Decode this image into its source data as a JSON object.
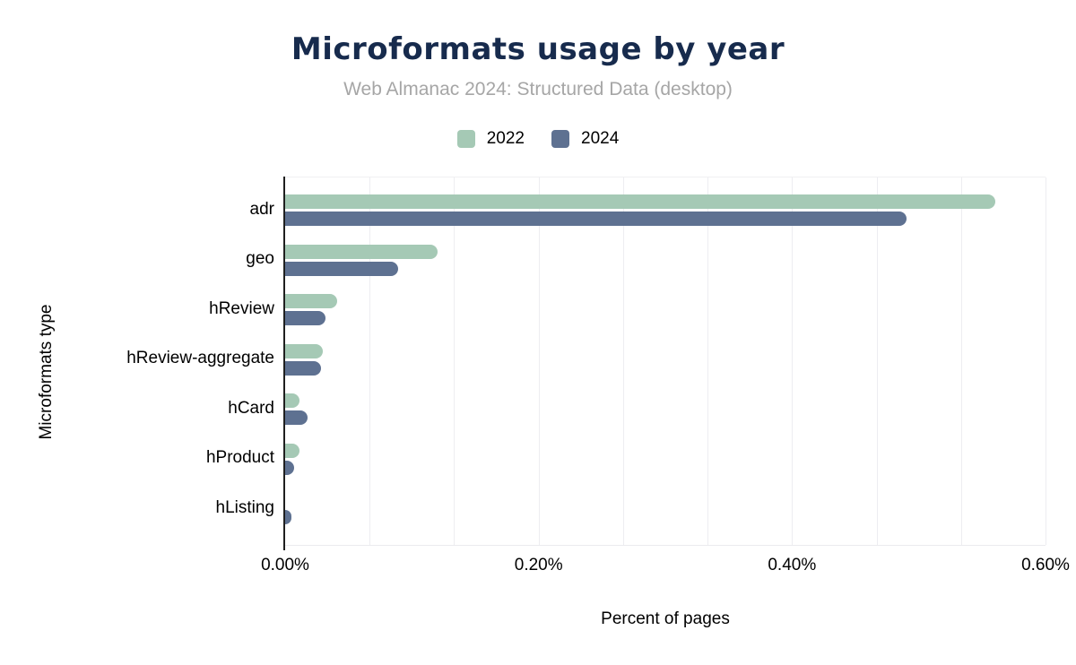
{
  "title": "Microformats usage by year",
  "subtitle": "Web Almanac 2024: Structured Data (desktop)",
  "colors": {
    "title_navy": "#172b4d",
    "subtitle_gray": "#a6a6a6",
    "series_2022_green": "#a5c9b5",
    "series_2024_blue": "#5e7191",
    "axis_line": "#1f1f1f",
    "gridline": "#ededf1"
  },
  "legend": {
    "items": [
      {
        "label": "2022",
        "color": "#a5c9b5"
      },
      {
        "label": "2024",
        "color": "#5e7191"
      }
    ]
  },
  "chart_data": {
    "type": "bar",
    "orientation": "horizontal",
    "title": "Microformats usage by year",
    "subtitle": "Web Almanac 2024: Structured Data (desktop)",
    "xlabel": "Percent of pages",
    "ylabel": "Microformats type",
    "xlim": [
      0,
      0.6
    ],
    "x_tick_values": [
      0,
      0.2,
      0.4,
      0.6
    ],
    "x_tick_labels": [
      "0.00%",
      "0.20%",
      "0.40%",
      "0.60%"
    ],
    "grid": "minor vertical gridlines, 3 per 0.20% interval",
    "legend_position": "top-center",
    "categories": [
      "adr",
      "geo",
      "hReview",
      "hReview-aggregate",
      "hCard",
      "hProduct",
      "hListing"
    ],
    "series": [
      {
        "name": "2022",
        "color": "#a5c9b5",
        "values_pct": [
          0.56,
          0.12,
          0.041,
          0.03,
          0.011,
          0.011,
          0.0
        ]
      },
      {
        "name": "2024",
        "color": "#5e7191",
        "values_pct": [
          0.49,
          0.089,
          0.032,
          0.028,
          0.018,
          0.007,
          0.005
        ]
      }
    ]
  }
}
